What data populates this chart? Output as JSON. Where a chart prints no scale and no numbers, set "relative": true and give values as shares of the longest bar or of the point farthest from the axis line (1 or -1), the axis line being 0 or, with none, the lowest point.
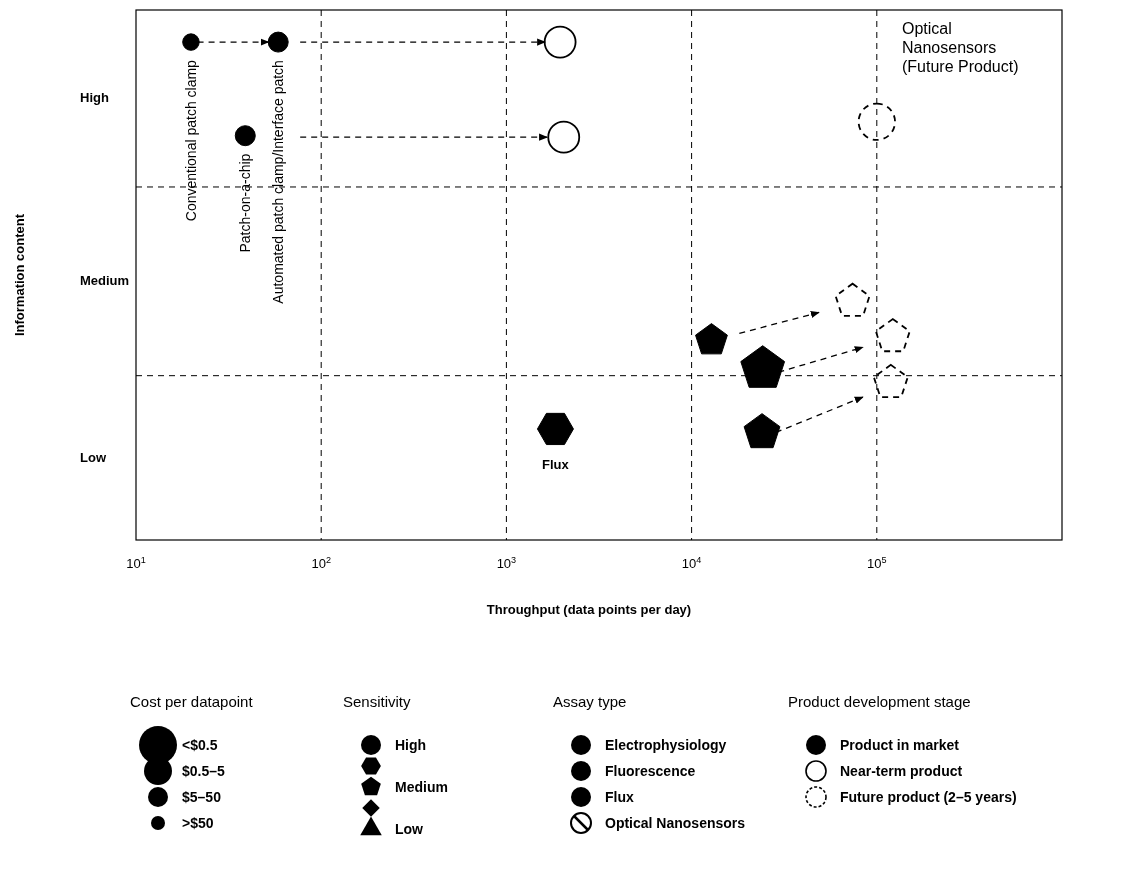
{
  "chart_data": [
    {
      "type": "scatter",
      "xlabel": "Throughput (data points per day)",
      "ylabel": "Information content",
      "log": "x",
      "xlim": [
        10,
        1000000
      ],
      "xticks": [
        {
          "value": 10,
          "label": "10$^{1}$"
        },
        {
          "value": 100,
          "label": "10$^{2}$"
        },
        {
          "value": 1000,
          "label": "10$^{3}$"
        },
        {
          "value": 10000,
          "label": "10$^{4}$"
        },
        {
          "value": 100000,
          "label": "10$^{5}$"
        }
      ],
      "relative": true,
      "grid": false,
      "ref_lines": [
        {
          "axis": "x",
          "value": 100,
          "line_style": "dashed"
        },
        {
          "axis": "x",
          "value": 1000,
          "line_style": "dashed"
        },
        {
          "axis": "x",
          "value": 10000,
          "line_style": "dashed"
        },
        {
          "axis": "x",
          "value": 100000,
          "line_style": "dashed"
        },
        {
          "axis": "y",
          "value": 0.33,
          "line_style": "dashed"
        },
        {
          "axis": "y",
          "value": 0.709,
          "line_style": "dashed"
        }
      ],
      "series": [
        {
          "type": "scatter",
          "marker": "circle",
          "color": "#000000",
          "x": [
            19.8,
            58.6,
            38.9
          ],
          "values": [
            1,
            1,
            0.812
          ],
          "sizes": [
            0.17,
            0.25,
            0.25
          ]
        },
        {
          "type": "scatter",
          "marker": "circle",
          "color": "#000000",
          "line_style": "solid",
          "x": [
            1950,
            2040
          ],
          "values": [
            1,
            0.809
          ],
          "sizes": [
            0.6,
            0.6
          ]
        },
        {
          "type": "scatter",
          "marker": "circle",
          "color": "#000000",
          "line_style": "dashed",
          "x": [
            100000
          ],
          "values": [
            0.84
          ],
          "sizes": [
            0.83
          ]
        },
        {
          "type": "scatter",
          "color": "#000000",
          "x": [
            1840
          ],
          "values": [
            0.223
          ],
          "sizes": [
            0.67
          ]
        },
        {
          "type": "scatter",
          "color": "#000000",
          "x": [
            12800,
            24200,
            24000
          ],
          "values": [
            0.401,
            0.344,
            0.216
          ],
          "sizes": [
            0.53,
            1,
            0.67
          ]
        },
        {
          "type": "scatter",
          "color": "#000000",
          "line_style": "dashed",
          "x": [
            74000,
            122000,
            119000
          ],
          "values": [
            0.479,
            0.408,
            0.316
          ],
          "sizes": [
            0.6,
            0.6,
            0.6
          ]
        },
        {
          "type": "line",
          "line_style": "dashed",
          "color": "#000000",
          "x": [
            21.5,
            52
          ],
          "values": [
            1,
            1
          ]
        },
        {
          "type": "line",
          "line_style": "dashed",
          "color": "#000000",
          "x": [
            77,
            1620
          ],
          "values": [
            1,
            1
          ]
        },
        {
          "type": "line",
          "line_style": "dashed",
          "color": "#000000",
          "x": [
            77,
            1660
          ],
          "values": [
            0.809,
            0.809
          ]
        },
        {
          "type": "line",
          "line_style": "dashed",
          "color": "#000000",
          "x": [
            18100,
            48700
          ],
          "values": [
            0.415,
            0.457
          ]
        },
        {
          "type": "line",
          "line_style": "dashed",
          "color": "#000000",
          "x": [
            29400,
            84100
          ],
          "values": [
            0.337,
            0.387
          ]
        },
        {
          "type": "line",
          "line_style": "dashed",
          "color": "#000000",
          "x": [
            28500,
            84100
          ],
          "values": [
            0.216,
            0.287
          ]
        }
      ],
      "annotations": [
        {
          "text": "Conventional patch clamp",
          "x": 19.8,
          "y": 1
        },
        {
          "text": "Patch-on-a-chip",
          "x": 38.9,
          "y": 0.812
        },
        {
          "text": "Automated patch clamp/Interface patch",
          "x": 58.6,
          "y": 1
        },
        {
          "text": "Flux",
          "x": 1840,
          "y": 0.223
        },
        "Low",
        "Medium",
        "High",
        "Optical Nanosensors (Future Product)"
      ]
    },
    {
      "type": "other",
      "title": "Cost per datapoint",
      "annotations": [
        "<$0.5",
        "$0.5–5",
        "$5–50",
        ">$50"
      ]
    },
    {
      "type": "other",
      "title": "Sensitivity",
      "annotations": [
        "High",
        "Medium",
        "Low"
      ]
    },
    {
      "type": "other",
      "title": "Assay type",
      "annotations": [
        "Electrophysiology",
        "Fluorescence",
        "Flux",
        "Optical Nanosensors"
      ]
    },
    {
      "type": "other",
      "title": "Product development stage",
      "annotations": [
        "Product in market",
        "Near-term product",
        "Future product (2–5 years)"
      ]
    }
  ]
}
